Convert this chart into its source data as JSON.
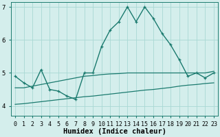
{
  "xlabel": "Humidex (Indice chaleur)",
  "bg_color": "#d4eeec",
  "line_color": "#1a7a6e",
  "grid_color": "#a8d8d4",
  "x": [
    0,
    1,
    2,
    3,
    4,
    5,
    6,
    7,
    8,
    9,
    10,
    11,
    12,
    13,
    14,
    15,
    16,
    17,
    18,
    19,
    20,
    21,
    22,
    23
  ],
  "y_main": [
    4.9,
    4.7,
    4.55,
    5.1,
    4.5,
    4.45,
    4.3,
    4.2,
    5.0,
    5.0,
    5.8,
    6.3,
    6.55,
    7.0,
    6.55,
    7.0,
    6.65,
    6.2,
    5.85,
    5.4,
    4.9,
    5.0,
    4.85,
    5.0
  ],
  "y_upper": [
    4.55,
    4.55,
    4.6,
    4.65,
    4.7,
    4.75,
    4.8,
    4.85,
    4.9,
    4.92,
    4.95,
    4.97,
    4.98,
    5.0,
    5.0,
    5.0,
    5.0,
    5.0,
    5.0,
    5.0,
    5.0,
    5.0,
    5.0,
    5.05
  ],
  "y_lower": [
    4.05,
    4.07,
    4.1,
    4.13,
    4.16,
    4.19,
    4.22,
    4.25,
    4.28,
    4.3,
    4.33,
    4.36,
    4.39,
    4.42,
    4.45,
    4.48,
    4.5,
    4.53,
    4.56,
    4.6,
    4.63,
    4.65,
    4.68,
    4.7
  ],
  "ylim": [
    3.7,
    7.15
  ],
  "xlim": [
    -0.5,
    23.5
  ],
  "yticks": [
    4,
    5,
    6,
    7
  ],
  "xticks": [
    0,
    1,
    2,
    3,
    4,
    5,
    6,
    7,
    8,
    9,
    10,
    11,
    12,
    13,
    14,
    15,
    16,
    17,
    18,
    19,
    20,
    21,
    22,
    23
  ],
  "tick_fontsize": 6,
  "xlabel_fontsize": 7.5
}
